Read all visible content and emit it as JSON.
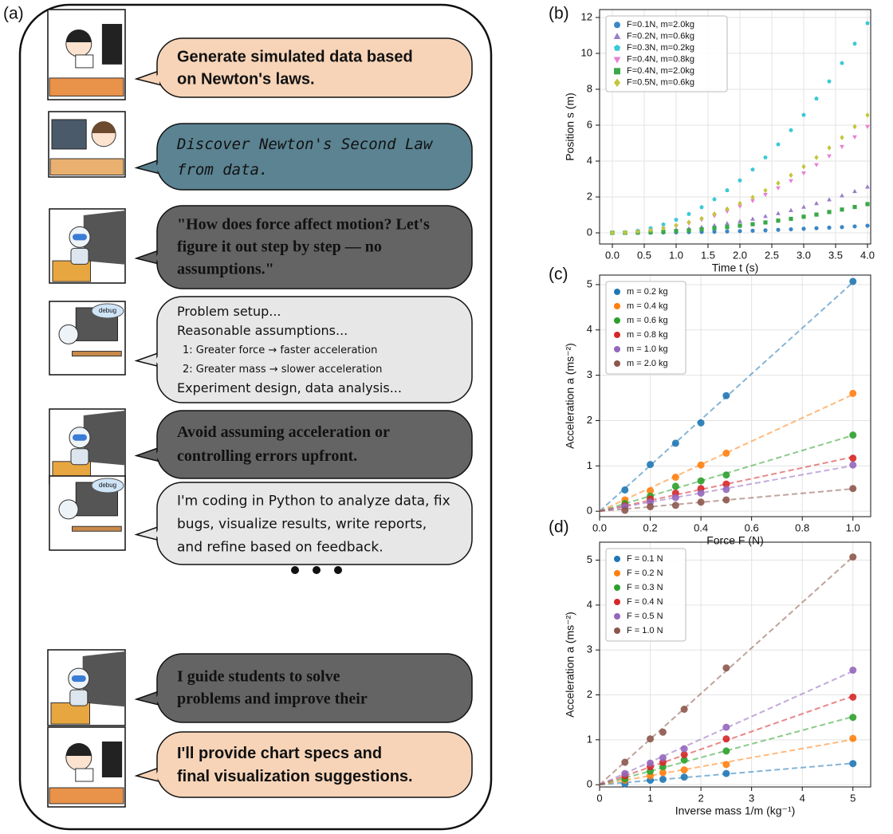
{
  "panel_a": {
    "label": "(a)",
    "messages": [
      {
        "lines": [
          "Generate simulated data based",
          "on Newton's laws."
        ]
      },
      {
        "lines": [
          "Discover Newton's Second Law",
          "from data."
        ]
      },
      {
        "lines": [
          "\"How does force affect motion? Let's",
          "figure it out step by step — no",
          "assumptions.\""
        ]
      },
      {
        "tag": "debug",
        "lines": [
          "Problem setup...",
          "Reasonable assumptions...",
          "1: Greater force → faster acceleration",
          "2: Greater mass → slower acceleration",
          "Experiment design, data analysis..."
        ]
      },
      {
        "lines": [
          "Avoid assuming acceleration or",
          "controlling errors upfront."
        ]
      },
      {
        "tag": "debug",
        "lines": [
          "I'm coding in Python to analyze data, fix",
          "bugs, visualize results, write reports,",
          "and refine based on feedback."
        ]
      },
      {
        "lines": [
          "I guide students to solve",
          "problems and improve their"
        ]
      },
      {
        "lines": [
          "I'll provide chart specs and",
          "final visualization suggestions."
        ]
      }
    ]
  },
  "chart_data": [
    {
      "type": "scatter",
      "panel_label": "(b)",
      "x_label": "Time t (s)",
      "y_label": "Position s (m)",
      "grid": true,
      "legend": "upper left",
      "fit_lines": false,
      "x": [
        0,
        0.2,
        0.4,
        0.6,
        0.8,
        1.0,
        1.2,
        1.4,
        1.6,
        1.8,
        2.0,
        2.2,
        2.4,
        2.6,
        2.8,
        3.0,
        3.2,
        3.4,
        3.6,
        3.8,
        4.0
      ],
      "series": [
        {
          "name": "F=0.1N, m=2.0kg",
          "color": "#3b86c6",
          "marker": "circle",
          "values": [
            0,
            0,
            0,
            0.01,
            0.02,
            0.03,
            0.04,
            0.05,
            0.06,
            0.08,
            0.1,
            0.12,
            0.14,
            0.17,
            0.2,
            0.23,
            0.26,
            0.29,
            0.32,
            0.36,
            0.4
          ]
        },
        {
          "name": "F=0.2N, m=0.6kg",
          "color": "#9a7fc7",
          "marker": "triangle-up",
          "values": [
            0,
            0.01,
            0.03,
            0.06,
            0.1,
            0.16,
            0.23,
            0.31,
            0.41,
            0.52,
            0.64,
            0.77,
            0.92,
            1.08,
            1.25,
            1.44,
            1.64,
            1.85,
            2.07,
            2.31,
            2.56
          ]
        },
        {
          "name": "F=0.3N, m=0.2kg",
          "color": "#3cc9d6",
          "marker": "pentagon",
          "values": [
            0,
            0.03,
            0.12,
            0.26,
            0.47,
            0.73,
            1.05,
            1.43,
            1.87,
            2.37,
            2.92,
            3.53,
            4.2,
            4.93,
            5.72,
            6.57,
            7.48,
            8.44,
            9.46,
            10.54,
            11.68
          ]
        },
        {
          "name": "F=0.4N, m=0.8kg",
          "color": "#e87fd6",
          "marker": "triangle-down",
          "values": [
            0,
            0.01,
            0.06,
            0.13,
            0.24,
            0.37,
            0.53,
            0.73,
            0.95,
            1.2,
            1.48,
            1.79,
            2.13,
            2.5,
            2.9,
            3.33,
            3.79,
            4.28,
            4.8,
            5.34,
            5.92
          ]
        },
        {
          "name": "F=0.4N, m=2.0kg",
          "color": "#3aa84a",
          "marker": "square",
          "values": [
            0,
            0,
            0.02,
            0.04,
            0.06,
            0.1,
            0.14,
            0.2,
            0.26,
            0.32,
            0.4,
            0.48,
            0.58,
            0.68,
            0.78,
            0.9,
            1.02,
            1.16,
            1.3,
            1.44,
            1.6
          ]
        },
        {
          "name": "F=0.5N, m=0.6kg",
          "color": "#c2c63a",
          "marker": "diamond",
          "values": [
            0,
            0.02,
            0.07,
            0.15,
            0.26,
            0.41,
            0.59,
            0.8,
            1.05,
            1.33,
            1.64,
            1.98,
            2.36,
            2.77,
            3.21,
            3.69,
            4.2,
            4.74,
            5.31,
            5.92,
            6.56
          ]
        }
      ],
      "xlim": [
        -0.2,
        4.05
      ],
      "ylim": [
        -0.62,
        12.44
      ],
      "xticks": [
        {
          "value": 0,
          "label": "0.0"
        },
        {
          "value": 0.5,
          "label": "0.5"
        },
        {
          "value": 1,
          "label": "1.0"
        },
        {
          "value": 1.5,
          "label": "1.5"
        },
        {
          "value": 2,
          "label": "2.0"
        },
        {
          "value": 2.5,
          "label": "2.5"
        },
        {
          "value": 3,
          "label": "3.0"
        },
        {
          "value": 3.5,
          "label": "3.5"
        },
        {
          "value": 4,
          "label": "4.0"
        }
      ],
      "yticks": [
        0,
        2,
        4,
        6,
        8,
        10,
        12
      ]
    },
    {
      "type": "scatter",
      "panel_label": "(c)",
      "x_label": "Force F (N)",
      "y_label": "Acceleration a (ms⁻²)",
      "grid": true,
      "legend": "upper left",
      "fit_lines": true,
      "x": [
        0.1,
        0.2,
        0.3,
        0.4,
        0.5,
        1.0
      ],
      "series": [
        {
          "name": "m = 0.2 kg",
          "color": "#1f77b4",
          "marker": "circle",
          "values": [
            0.47,
            1.03,
            1.5,
            1.95,
            2.55,
            5.07
          ]
        },
        {
          "name": "m = 0.4 kg",
          "color": "#ff7f0e",
          "marker": "circle",
          "values": [
            0.25,
            0.45,
            0.75,
            1.02,
            1.28,
            2.6
          ]
        },
        {
          "name": "m = 0.6 kg",
          "color": "#2ca02c",
          "marker": "circle",
          "values": [
            0.17,
            0.33,
            0.55,
            0.67,
            0.8,
            1.68
          ]
        },
        {
          "name": "m = 0.8 kg",
          "color": "#d62728",
          "marker": "circle",
          "values": [
            0.12,
            0.27,
            0.4,
            0.5,
            0.6,
            1.17
          ]
        },
        {
          "name": "m = 1.0 kg",
          "color": "#9467bd",
          "marker": "circle",
          "values": [
            0.1,
            0.2,
            0.3,
            0.4,
            0.48,
            1.02
          ]
        },
        {
          "name": "m = 2.0 kg",
          "color": "#8c564b",
          "marker": "circle",
          "values": [
            0.02,
            0.1,
            0.13,
            0.2,
            0.25,
            0.5
          ]
        }
      ],
      "xlim": [
        0,
        1.07
      ],
      "ylim": [
        -0.12,
        5.21
      ],
      "xticks": [
        {
          "value": 0,
          "label": "0.0"
        },
        {
          "value": 0.2,
          "label": "0.2"
        },
        {
          "value": 0.4,
          "label": "0.4"
        },
        {
          "value": 0.6,
          "label": "0.6"
        },
        {
          "value": 0.8,
          "label": "0.8"
        },
        {
          "value": 1,
          "label": "1.0"
        }
      ],
      "yticks": [
        0,
        1,
        2,
        3,
        4,
        5
      ]
    },
    {
      "type": "scatter",
      "panel_label": "(d)",
      "x_label": "Inverse mass 1/m (kg⁻¹)",
      "y_label": "Acceleration a (ms⁻²)",
      "grid": true,
      "legend": "upper left",
      "fit_lines": true,
      "x": [
        0.5,
        1,
        1.25,
        1.67,
        2.5,
        5
      ],
      "series": [
        {
          "name": "F = 0.1 N",
          "color": "#1f77b4",
          "marker": "circle",
          "values": [
            0.02,
            0.1,
            0.12,
            0.17,
            0.25,
            0.47
          ]
        },
        {
          "name": "F = 0.2 N",
          "color": "#ff7f0e",
          "marker": "circle",
          "values": [
            0.1,
            0.2,
            0.27,
            0.33,
            0.45,
            1.03
          ]
        },
        {
          "name": "F = 0.3 N",
          "color": "#2ca02c",
          "marker": "circle",
          "values": [
            0.13,
            0.3,
            0.4,
            0.55,
            0.75,
            1.5
          ]
        },
        {
          "name": "F = 0.4 N",
          "color": "#d62728",
          "marker": "circle",
          "values": [
            0.2,
            0.4,
            0.5,
            0.67,
            1.02,
            1.95
          ]
        },
        {
          "name": "F = 0.5 N",
          "color": "#9467bd",
          "marker": "circle",
          "values": [
            0.25,
            0.48,
            0.6,
            0.8,
            1.28,
            2.55
          ]
        },
        {
          "name": "F = 1.0 N",
          "color": "#8c564b",
          "marker": "circle",
          "values": [
            0.5,
            1.02,
            1.17,
            1.68,
            2.6,
            5.07
          ]
        }
      ],
      "xlim": [
        0,
        5.35
      ],
      "ylim": [
        -0.05,
        5.4
      ],
      "xticks": [
        0,
        1,
        2,
        3,
        4,
        5
      ],
      "yticks": [
        0,
        1,
        2,
        3,
        4,
        5
      ]
    }
  ]
}
